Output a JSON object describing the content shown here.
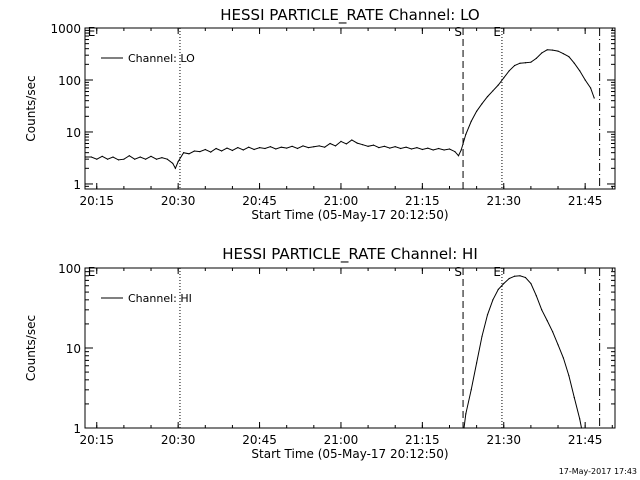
{
  "chart_data": [
    {
      "type": "line",
      "title": "HESSI PARTICLE_RATE Channel: LO",
      "xlabel": "Start Time (05-May-17 20:12:50)",
      "ylabel": "Counts/sec",
      "x_tick_labels": [
        "20:15",
        "20:30",
        "20:45",
        "21:00",
        "21:15",
        "21:30",
        "21:45"
      ],
      "y_tick_labels": [
        "1",
        "10",
        "100",
        "1000"
      ],
      "yscale": "log",
      "xlim": [
        "20:12:50",
        "21:50:30"
      ],
      "ylim": [
        0.8,
        1000
      ],
      "legend": {
        "label": "Channel: LO",
        "placement": "top-left"
      },
      "markers": [
        {
          "label": "E",
          "x": "20:13:20",
          "style": "none"
        },
        {
          "x": "20:30:20",
          "style": "dotted"
        },
        {
          "label": "S",
          "x": "21:22:30",
          "style": "dashed"
        },
        {
          "label": "E",
          "x": "21:29:40",
          "style": "dotted"
        },
        {
          "x": "21:47:40",
          "style": "dashdot"
        }
      ],
      "series": [
        {
          "name": "Channel: LO",
          "points": [
            [
              "20:13:00",
              3.3
            ],
            [
              "20:14:00",
              3.3
            ],
            [
              "20:15:00",
              3.0
            ],
            [
              "20:16:00",
              3.4
            ],
            [
              "20:17:00",
              3.0
            ],
            [
              "20:18:00",
              3.3
            ],
            [
              "20:19:00",
              2.9
            ],
            [
              "20:20:00",
              3.0
            ],
            [
              "20:21:00",
              3.5
            ],
            [
              "20:22:00",
              3.0
            ],
            [
              "20:23:00",
              3.3
            ],
            [
              "20:24:00",
              3.0
            ],
            [
              "20:25:00",
              3.4
            ],
            [
              "20:26:00",
              3.0
            ],
            [
              "20:27:00",
              3.2
            ],
            [
              "20:28:00",
              3.0
            ],
            [
              "20:29:00",
              2.5
            ],
            [
              "20:29:30",
              2.0
            ],
            [
              "20:30:00",
              2.7
            ],
            [
              "20:31:00",
              4.0
            ],
            [
              "20:32:00",
              3.8
            ],
            [
              "20:33:00",
              4.3
            ],
            [
              "20:34:00",
              4.2
            ],
            [
              "20:35:00",
              4.6
            ],
            [
              "20:36:00",
              4.1
            ],
            [
              "20:37:00",
              4.8
            ],
            [
              "20:38:00",
              4.3
            ],
            [
              "20:39:00",
              4.9
            ],
            [
              "20:40:00",
              4.4
            ],
            [
              "20:41:00",
              5.0
            ],
            [
              "20:42:00",
              4.5
            ],
            [
              "20:43:00",
              5.1
            ],
            [
              "20:44:00",
              4.6
            ],
            [
              "20:45:00",
              5.0
            ],
            [
              "20:46:00",
              4.8
            ],
            [
              "20:47:00",
              5.2
            ],
            [
              "20:48:00",
              4.7
            ],
            [
              "20:49:00",
              5.1
            ],
            [
              "20:50:00",
              4.9
            ],
            [
              "20:51:00",
              5.3
            ],
            [
              "20:52:00",
              4.8
            ],
            [
              "20:53:00",
              5.4
            ],
            [
              "20:54:00",
              5.0
            ],
            [
              "20:55:00",
              5.2
            ],
            [
              "20:56:00",
              5.4
            ],
            [
              "20:57:00",
              5.1
            ],
            [
              "20:58:00",
              6.0
            ],
            [
              "20:59:00",
              5.4
            ],
            [
              "21:00:00",
              6.6
            ],
            [
              "21:01:00",
              5.9
            ],
            [
              "21:02:00",
              7.0
            ],
            [
              "21:03:00",
              6.1
            ],
            [
              "21:04:00",
              5.7
            ],
            [
              "21:05:00",
              5.3
            ],
            [
              "21:06:00",
              5.6
            ],
            [
              "21:07:00",
              5.0
            ],
            [
              "21:08:00",
              5.3
            ],
            [
              "21:09:00",
              4.9
            ],
            [
              "21:10:00",
              5.2
            ],
            [
              "21:11:00",
              4.8
            ],
            [
              "21:12:00",
              5.1
            ],
            [
              "21:13:00",
              4.7
            ],
            [
              "21:14:00",
              5.0
            ],
            [
              "21:15:00",
              4.6
            ],
            [
              "21:16:00",
              4.9
            ],
            [
              "21:17:00",
              4.5
            ],
            [
              "21:18:00",
              4.8
            ],
            [
              "21:19:00",
              4.5
            ],
            [
              "21:20:00",
              4.7
            ],
            [
              "21:21:00",
              4.2
            ],
            [
              "21:21:40",
              3.5
            ],
            [
              "21:22:10",
              4.5
            ],
            [
              "21:23:00",
              9.0
            ],
            [
              "21:24:00",
              16
            ],
            [
              "21:25:00",
              25
            ],
            [
              "21:26:00",
              35
            ],
            [
              "21:27:00",
              48
            ],
            [
              "21:28:00",
              62
            ],
            [
              "21:29:00",
              80
            ],
            [
              "21:30:00",
              110
            ],
            [
              "21:31:00",
              150
            ],
            [
              "21:32:00",
              190
            ],
            [
              "21:33:00",
              210
            ],
            [
              "21:34:00",
              215
            ],
            [
              "21:35:00",
              220
            ],
            [
              "21:36:00",
              260
            ],
            [
              "21:37:00",
              330
            ],
            [
              "21:38:00",
              380
            ],
            [
              "21:39:00",
              375
            ],
            [
              "21:40:00",
              360
            ],
            [
              "21:41:00",
              320
            ],
            [
              "21:42:00",
              280
            ],
            [
              "21:43:00",
              210
            ],
            [
              "21:44:00",
              150
            ],
            [
              "21:45:00",
              100
            ],
            [
              "21:46:00",
              70
            ],
            [
              "21:46:40",
              45
            ]
          ]
        }
      ]
    },
    {
      "type": "line",
      "title": "HESSI PARTICLE_RATE Channel: HI",
      "xlabel": "Start Time (05-May-17 20:12:50)",
      "ylabel": "Counts/sec",
      "x_tick_labels": [
        "20:15",
        "20:30",
        "20:45",
        "21:00",
        "21:15",
        "21:30",
        "21:45"
      ],
      "y_tick_labels": [
        "1",
        "10",
        "100"
      ],
      "yscale": "log",
      "xlim": [
        "20:12:50",
        "21:50:30"
      ],
      "ylim": [
        1,
        100
      ],
      "legend": {
        "label": "Channel: HI",
        "placement": "top-left"
      },
      "markers": [
        {
          "label": "E",
          "x": "20:13:20",
          "style": "none"
        },
        {
          "x": "20:30:20",
          "style": "dotted"
        },
        {
          "label": "S",
          "x": "21:22:30",
          "style": "dashed"
        },
        {
          "label": "E",
          "x": "21:29:40",
          "style": "dotted"
        },
        {
          "x": "21:47:40",
          "style": "dashdot"
        }
      ],
      "series": [
        {
          "name": "Channel: HI",
          "points": [
            [
              "21:22:40",
              1.0
            ],
            [
              "21:23:00",
              1.5
            ],
            [
              "21:24:00",
              3.0
            ],
            [
              "21:25:00",
              6.5
            ],
            [
              "21:26:00",
              14
            ],
            [
              "21:27:00",
              26
            ],
            [
              "21:28:00",
              40
            ],
            [
              "21:29:00",
              54
            ],
            [
              "21:30:00",
              64
            ],
            [
              "21:31:00",
              74
            ],
            [
              "21:32:00",
              79
            ],
            [
              "21:33:00",
              80
            ],
            [
              "21:34:00",
              76
            ],
            [
              "21:35:00",
              64
            ],
            [
              "21:36:00",
              45
            ],
            [
              "21:37:00",
              30
            ],
            [
              "21:38:00",
              22
            ],
            [
              "21:39:00",
              16
            ],
            [
              "21:40:00",
              11
            ],
            [
              "21:41:00",
              7.5
            ],
            [
              "21:42:00",
              4.5
            ],
            [
              "21:43:00",
              2.4
            ],
            [
              "21:44:00",
              1.3
            ],
            [
              "21:44:20",
              1.0
            ]
          ]
        }
      ]
    }
  ],
  "footer": {
    "timestamp": "17-May-2017 17:43"
  }
}
